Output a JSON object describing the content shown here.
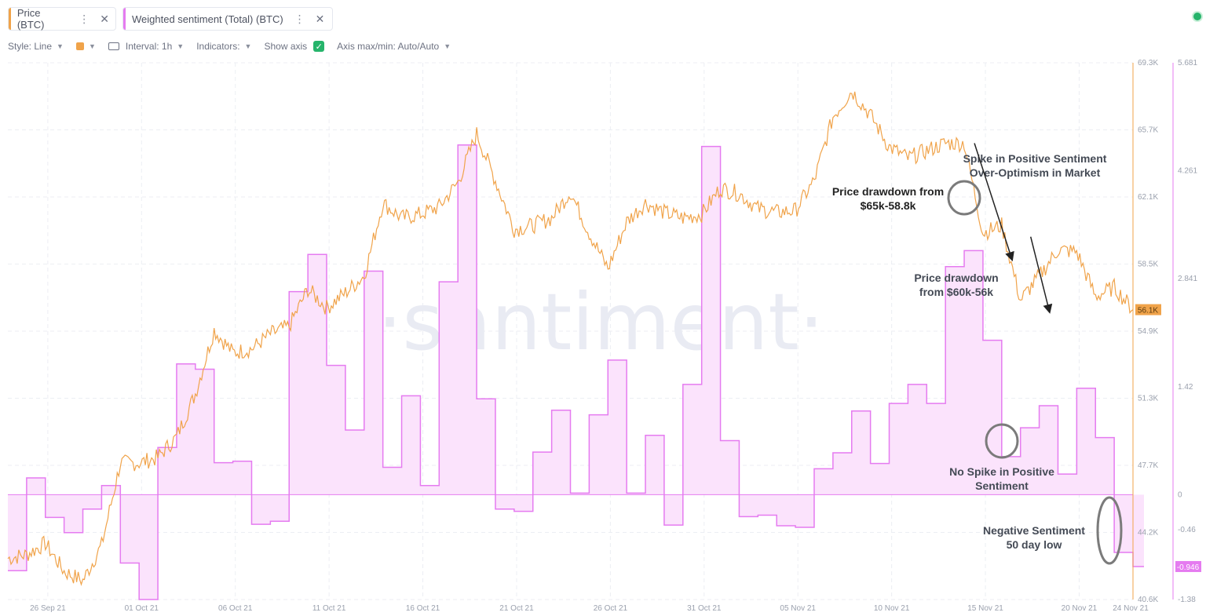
{
  "tabs": [
    {
      "label": "Price (BTC)",
      "color": "#f0a34a"
    },
    {
      "label": "Weighted sentiment (Total) (BTC)",
      "color": "#e57bf0"
    }
  ],
  "toolbar": {
    "style": "Style: Line",
    "interval": "Interval: 1h",
    "indicators": "Indicators:",
    "show_axis": "Show axis",
    "axis_maxmin": "Axis max/min: Auto/Auto"
  },
  "watermark": "·santiment·",
  "annotations": {
    "spike_line1": "Spike in Positive Sentiment",
    "spike_line2": "Over-Optimism in Market",
    "drawdown1_line1": "Price drawdown from",
    "drawdown1_line2": "$65k-58.8k",
    "drawdown2_line1": "Price drawdown",
    "drawdown2_line2": "from $60k-56k",
    "nospike_line1": "No Spike in Positive",
    "nospike_line2": "Sentiment",
    "neg_line1": "Negative Sentiment",
    "neg_line2": "50 day low"
  },
  "chart_data": {
    "type": "line",
    "x_range": [
      "2021-09-25",
      "2021-11-24"
    ],
    "x_ticks": [
      "26 Sep 21",
      "01 Oct 21",
      "06 Oct 21",
      "11 Oct 21",
      "16 Oct 21",
      "21 Oct 21",
      "26 Oct 21",
      "31 Oct 21",
      "05 Nov 21",
      "10 Nov 21",
      "15 Nov 21",
      "20 Nov 21",
      "24 Nov 21"
    ],
    "price_axis": {
      "ticks": [
        "69.3K",
        "65.7K",
        "62.1K",
        "58.5K",
        "54.9K",
        "51.3K",
        "47.7K",
        "44.2K",
        "40.6K"
      ],
      "min": 40.6,
      "max": 69.3,
      "unit": "K",
      "last_value_label": "56.1K",
      "color": "#f0a34a"
    },
    "sentiment_axis": {
      "ticks": [
        "5.681",
        "4.261",
        "2.841",
        "1.42",
        "0",
        "-0.46",
        "-1.38"
      ],
      "tick_values": [
        5.681,
        4.261,
        2.841,
        1.42,
        0,
        -0.46,
        -1.38
      ],
      "min": -1.38,
      "max": 5.681,
      "last_value_label": "-0.946",
      "color": "#e57bf0"
    },
    "series": [
      {
        "name": "Price (BTC)",
        "kind": "line",
        "x": [
          "2021-09-25",
          "2021-09-26",
          "2021-09-27",
          "2021-09-28",
          "2021-09-29",
          "2021-09-30",
          "2021-10-01",
          "2021-10-02",
          "2021-10-03",
          "2021-10-04",
          "2021-10-05",
          "2021-10-06",
          "2021-10-07",
          "2021-10-08",
          "2021-10-09",
          "2021-10-10",
          "2021-10-11",
          "2021-10-12",
          "2021-10-13",
          "2021-10-14",
          "2021-10-15",
          "2021-10-16",
          "2021-10-17",
          "2021-10-18",
          "2021-10-19",
          "2021-10-20",
          "2021-10-21",
          "2021-10-22",
          "2021-10-23",
          "2021-10-24",
          "2021-10-25",
          "2021-10-26",
          "2021-10-27",
          "2021-10-28",
          "2021-10-29",
          "2021-10-30",
          "2021-10-31",
          "2021-11-01",
          "2021-11-02",
          "2021-11-03",
          "2021-11-04",
          "2021-11-05",
          "2021-11-06",
          "2021-11-07",
          "2021-11-08",
          "2021-11-09",
          "2021-11-10",
          "2021-11-11",
          "2021-11-12",
          "2021-11-13",
          "2021-11-14",
          "2021-11-15",
          "2021-11-16",
          "2021-11-17",
          "2021-11-18",
          "2021-11-19",
          "2021-11-20",
          "2021-11-21",
          "2021-11-22",
          "2021-11-23",
          "2021-11-24"
        ],
        "values": [
          42.8,
          43.0,
          43.6,
          42.1,
          41.6,
          43.5,
          47.9,
          47.9,
          48.2,
          49.3,
          51.6,
          55.0,
          53.8,
          54.0,
          54.8,
          55.2,
          57.2,
          56.2,
          57.0,
          57.9,
          61.8,
          61.0,
          61.2,
          61.6,
          62.9,
          65.5,
          63.0,
          60.4,
          60.6,
          61.0,
          62.4,
          60.2,
          58.3,
          60.8,
          61.8,
          61.3,
          61.0,
          61.2,
          62.6,
          62.3,
          61.5,
          61.3,
          61.4,
          63.0,
          66.4,
          67.8,
          66.5,
          64.8,
          64.2,
          64.6,
          65.0,
          65.0,
          60.2,
          60.6,
          56.6,
          57.9,
          59.3,
          59.2,
          56.8,
          57.3,
          56.1
        ]
      },
      {
        "name": "Weighted sentiment (Total) (BTC)",
        "kind": "step-area",
        "x": [
          "2021-09-25",
          "2021-09-26",
          "2021-09-27",
          "2021-09-28",
          "2021-09-29",
          "2021-09-30",
          "2021-10-01",
          "2021-10-02",
          "2021-10-03",
          "2021-10-04",
          "2021-10-05",
          "2021-10-06",
          "2021-10-07",
          "2021-10-08",
          "2021-10-09",
          "2021-10-10",
          "2021-10-11",
          "2021-10-12",
          "2021-10-13",
          "2021-10-14",
          "2021-10-15",
          "2021-10-16",
          "2021-10-17",
          "2021-10-18",
          "2021-10-19",
          "2021-10-20",
          "2021-10-21",
          "2021-10-22",
          "2021-10-23",
          "2021-10-24",
          "2021-10-25",
          "2021-10-26",
          "2021-10-27",
          "2021-10-28",
          "2021-10-29",
          "2021-10-30",
          "2021-10-31",
          "2021-11-01",
          "2021-11-02",
          "2021-11-03",
          "2021-11-04",
          "2021-11-05",
          "2021-11-06",
          "2021-11-07",
          "2021-11-08",
          "2021-11-09",
          "2021-11-10",
          "2021-11-11",
          "2021-11-12",
          "2021-11-13",
          "2021-11-14",
          "2021-11-15",
          "2021-11-16",
          "2021-11-17",
          "2021-11-18",
          "2021-11-19",
          "2021-11-20",
          "2021-11-21",
          "2021-11-22",
          "2021-11-23",
          "2021-11-24"
        ],
        "values": [
          -1.0,
          0.22,
          -0.3,
          -0.5,
          -0.19,
          0.12,
          -0.9,
          -1.38,
          0.62,
          1.72,
          1.65,
          0.42,
          0.44,
          -0.39,
          -0.35,
          2.67,
          3.16,
          1.7,
          0.85,
          2.94,
          0.36,
          1.3,
          0.12,
          2.8,
          4.6,
          1.26,
          -0.19,
          -0.22,
          0.56,
          1.11,
          0.02,
          1.05,
          1.77,
          0.02,
          0.78,
          -0.4,
          1.45,
          4.58,
          0.71,
          -0.29,
          -0.27,
          -0.41,
          -0.43,
          0.34,
          0.55,
          1.1,
          0.41,
          1.2,
          1.45,
          1.2,
          3.0,
          3.21,
          2.03,
          0.5,
          0.88,
          1.17,
          0.27,
          1.4,
          0.75,
          -0.76,
          -0.946
        ]
      }
    ],
    "annotation_arrows": [
      {
        "from": [
          "2021-11-15",
          65.0
        ],
        "to": [
          "2021-11-17",
          58.8
        ]
      },
      {
        "from": [
          "2021-11-18",
          60.0
        ],
        "to": [
          "2021-11-19",
          56.0
        ]
      }
    ]
  }
}
